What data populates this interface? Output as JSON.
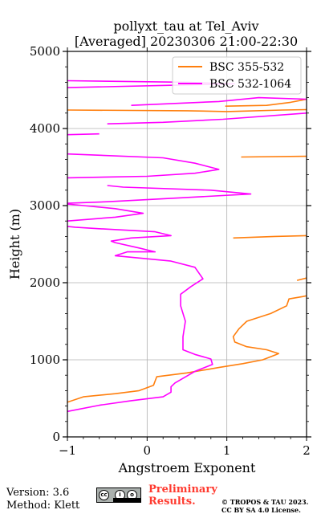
{
  "chart_data": {
    "type": "line",
    "title": "pollyxt_tau at Tel_Aviv",
    "subtitle": "[Averaged] 20230306 21:00-22:30",
    "xlabel": "Angstroem Exponent",
    "ylabel": "Height (m)",
    "xlim": [
      -1,
      2
    ],
    "ylim": [
      0,
      5000
    ],
    "x_ticks": [
      -1,
      0,
      1,
      2
    ],
    "y_ticks": [
      0,
      1000,
      2000,
      3000,
      4000,
      5000
    ],
    "x_tick_labels": [
      "−1",
      "0",
      "1",
      "2"
    ],
    "y_tick_labels": [
      "0",
      "1000",
      "2000",
      "3000",
      "4000",
      "5000"
    ],
    "grid": true,
    "legend_position": "top-right",
    "series": [
      {
        "name": "BSC 355-532",
        "color": "#ff7f0e",
        "segments": [
          [
            [
              -1.0,
              450
            ],
            [
              -0.8,
              520
            ],
            [
              -0.4,
              560
            ],
            [
              -0.1,
              600
            ],
            [
              0.08,
              670
            ],
            [
              0.12,
              780
            ],
            [
              0.5,
              830
            ],
            [
              0.9,
              900
            ],
            [
              1.2,
              950
            ],
            [
              1.45,
              1000
            ],
            [
              1.6,
              1060
            ],
            [
              1.65,
              1080
            ],
            [
              1.5,
              1130
            ],
            [
              1.25,
              1170
            ],
            [
              1.1,
              1230
            ],
            [
              1.08,
              1300
            ],
            [
              1.15,
              1400
            ],
            [
              1.25,
              1500
            ],
            [
              1.55,
              1600
            ],
            [
              1.75,
              1700
            ],
            [
              1.78,
              1790
            ],
            [
              1.95,
              1820
            ],
            [
              2.0,
              1830
            ]
          ],
          [
            [
              1.88,
              2030
            ],
            [
              2.0,
              2060
            ]
          ],
          [
            [
              1.08,
              2580
            ],
            [
              1.6,
              2600
            ],
            [
              2.0,
              2610
            ]
          ],
          [
            [
              1.18,
              3630
            ],
            [
              2.0,
              3640
            ]
          ],
          [
            [
              -1.0,
              4240
            ],
            [
              0.5,
              4230
            ],
            [
              1.0,
              4220
            ],
            [
              1.7,
              4240
            ],
            [
              2.0,
              4245
            ]
          ],
          [
            [
              0.98,
              4290
            ],
            [
              1.5,
              4300
            ],
            [
              1.8,
              4340
            ],
            [
              2.0,
              4380
            ]
          ]
        ]
      },
      {
        "name": "BSC 532-1064",
        "color": "#ff00ff",
        "segments": [
          [
            [
              -1.0,
              330
            ],
            [
              -0.6,
              410
            ],
            [
              -0.2,
              470
            ],
            [
              0.2,
              520
            ],
            [
              0.3,
              580
            ],
            [
              0.3,
              650
            ],
            [
              0.35,
              700
            ],
            [
              0.6,
              850
            ],
            [
              0.82,
              940
            ],
            [
              0.8,
              1010
            ],
            [
              0.6,
              1070
            ],
            [
              0.45,
              1130
            ],
            [
              0.45,
              1300
            ],
            [
              0.48,
              1500
            ],
            [
              0.42,
              1700
            ],
            [
              0.42,
              1850
            ],
            [
              0.55,
              1950
            ],
            [
              0.7,
              2050
            ],
            [
              0.6,
              2200
            ],
            [
              0.3,
              2280
            ],
            [
              -0.4,
              2350
            ],
            [
              -0.25,
              2400
            ],
            [
              0.1,
              2400
            ],
            [
              -0.1,
              2450
            ],
            [
              -0.4,
              2520
            ],
            [
              -0.45,
              2540
            ],
            [
              -0.2,
              2580
            ],
            [
              0.3,
              2610
            ],
            [
              0.1,
              2660
            ],
            [
              -0.6,
              2700
            ],
            [
              -0.9,
              2720
            ],
            [
              -1.0,
              2730
            ]
          ],
          [
            [
              -1.0,
              2800
            ],
            [
              -0.4,
              2850
            ],
            [
              -0.05,
              2900
            ],
            [
              -0.4,
              2960
            ],
            [
              -0.9,
              3010
            ],
            [
              -1.0,
              3020
            ]
          ],
          [
            [
              -1.0,
              3030
            ],
            [
              -0.5,
              3050
            ],
            [
              0.4,
              3100
            ],
            [
              1.3,
              3150
            ],
            [
              0.8,
              3200
            ],
            [
              -0.3,
              3240
            ],
            [
              -0.5,
              3260
            ]
          ],
          [
            [
              -1.0,
              3670
            ],
            [
              0.2,
              3620
            ],
            [
              0.6,
              3550
            ],
            [
              0.9,
              3470
            ],
            [
              0.6,
              3420
            ],
            [
              0.0,
              3380
            ],
            [
              -1.0,
              3360
            ]
          ],
          [
            [
              -1.0,
              3920
            ],
            [
              -0.6,
              3930
            ]
          ],
          [
            [
              -0.5,
              4060
            ],
            [
              0.2,
              4080
            ],
            [
              0.95,
              4120
            ],
            [
              2.0,
              4200
            ]
          ],
          [
            [
              -0.2,
              4300
            ],
            [
              0.9,
              4350
            ],
            [
              1.4,
              4400
            ],
            [
              2.0,
              4380
            ]
          ],
          [
            [
              -1.0,
              4530
            ],
            [
              0.3,
              4560
            ],
            [
              1.1,
              4580
            ]
          ],
          [
            [
              -1.0,
              4620
            ],
            [
              0.5,
              4600
            ],
            [
              1.0,
              4580
            ]
          ]
        ]
      }
    ]
  },
  "footer": {
    "version": "Version: 3.6",
    "method": "Method: Klett",
    "preliminary_line1": "Preliminary",
    "preliminary_line2": "Results.",
    "copyright_line1": "© TROPOS & TAU 2023.",
    "copyright_line2": "CC BY SA 4.0 License.",
    "preliminary_color": "#ff3b30"
  },
  "icons": {
    "license_badge": "cc-by-sa-badge"
  }
}
